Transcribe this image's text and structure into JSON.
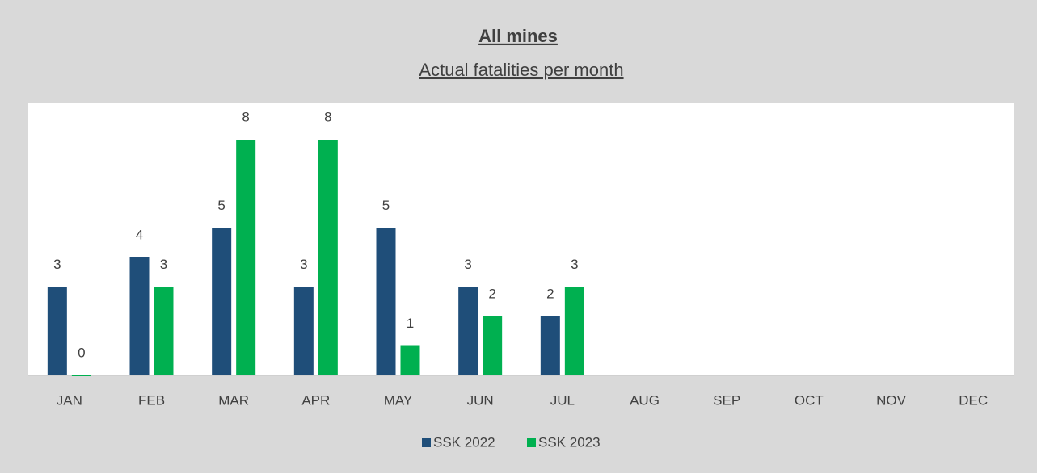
{
  "chart_data": {
    "type": "bar",
    "title": "All mines",
    "subtitle": "Actual fatalities per month",
    "categories": [
      "JAN",
      "FEB",
      "MAR",
      "APR",
      "MAY",
      "JUN",
      "JUL",
      "AUG",
      "SEP",
      "OCT",
      "NOV",
      "DEC"
    ],
    "series": [
      {
        "name": "SSK 2022",
        "color": "#1f4e79",
        "values": [
          3,
          4,
          5,
          3,
          5,
          3,
          2,
          null,
          null,
          null,
          null,
          null
        ]
      },
      {
        "name": "SSK 2023",
        "color": "#00b050",
        "values": [
          0,
          3,
          8,
          8,
          1,
          2,
          3,
          null,
          null,
          null,
          null,
          null
        ]
      }
    ],
    "ylim": [
      0,
      8
    ],
    "legend": "bottom"
  }
}
